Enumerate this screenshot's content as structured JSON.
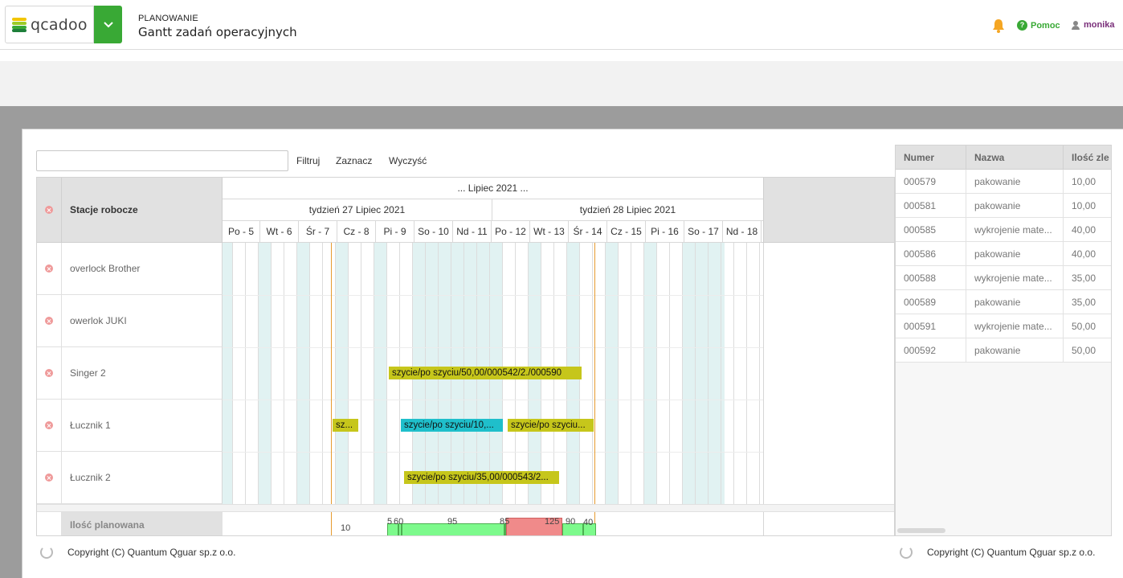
{
  "header": {
    "logo_text": "qcadoo",
    "section": "PLANOWANIE",
    "title": "Gantt zadań operacyjnych",
    "help_label": "Pomoc",
    "user_name": "monika",
    "accent_color": "#39a935"
  },
  "filter": {
    "value": "",
    "filter_label": "Filtruj",
    "select_label": "Zaznacz",
    "clear_label": "Wyczyść"
  },
  "gantt": {
    "resources_header": "Stacje robocze",
    "month": "... Lipiec 2021 ...",
    "weeks": [
      "tydzień 27 Lipiec 2021",
      "tydzień 28 Lipiec 2021"
    ],
    "days": [
      "Po - 5",
      "Wt - 6",
      "Śr - 7",
      "Cz - 8",
      "Pi - 9",
      "So - 10",
      "Nd - 11",
      "Po - 12",
      "Wt - 13",
      "Śr - 14",
      "Cz - 15",
      "Pi - 16",
      "So - 17",
      "Nd - 18"
    ],
    "resources": [
      "overlock Brother",
      "owerlok JUKI",
      "Singer 2",
      "Łucznik 1",
      "Łucznik 2"
    ],
    "tasks": [
      {
        "row": 2,
        "label": "szycie/po szyciu/50,00/000542/2./000590",
        "color": "olive"
      },
      {
        "row": 3,
        "label": "sz...",
        "color": "olive"
      },
      {
        "row": 3,
        "label": "szycie/po szyciu/10,...",
        "color": "cyan"
      },
      {
        "row": 3,
        "label": "szycie/po szyciu...",
        "color": "olive"
      },
      {
        "row": 4,
        "label": "szycie/po szyciu/35,00/000543/2...",
        "color": "olive"
      }
    ],
    "planned_label": "Ilość planowana",
    "load_values": [
      "10",
      "5",
      "60",
      "95",
      "85",
      "125",
      "90",
      "40"
    ]
  },
  "table": {
    "columns": [
      "Numer",
      "Nazwa",
      "Ilość zle"
    ],
    "rows": [
      [
        "000579",
        "pakowanie",
        "10,00"
      ],
      [
        "000581",
        "pakowanie",
        "10,00"
      ],
      [
        "000585",
        "wykrojenie mate...",
        "40,00"
      ],
      [
        "000586",
        "pakowanie",
        "40,00"
      ],
      [
        "000588",
        "wykrojenie mate...",
        "35,00"
      ],
      [
        "000589",
        "pakowanie",
        "35,00"
      ],
      [
        "000591",
        "wykrojenie mate...",
        "50,00"
      ],
      [
        "000592",
        "pakowanie",
        "50,00"
      ]
    ]
  },
  "footer": {
    "copyright_left": "Copyright (C) Quantum Qguar sp.z o.o.",
    "copyright_right": "Copyright (C) Quantum Qguar sp.z o.o."
  }
}
